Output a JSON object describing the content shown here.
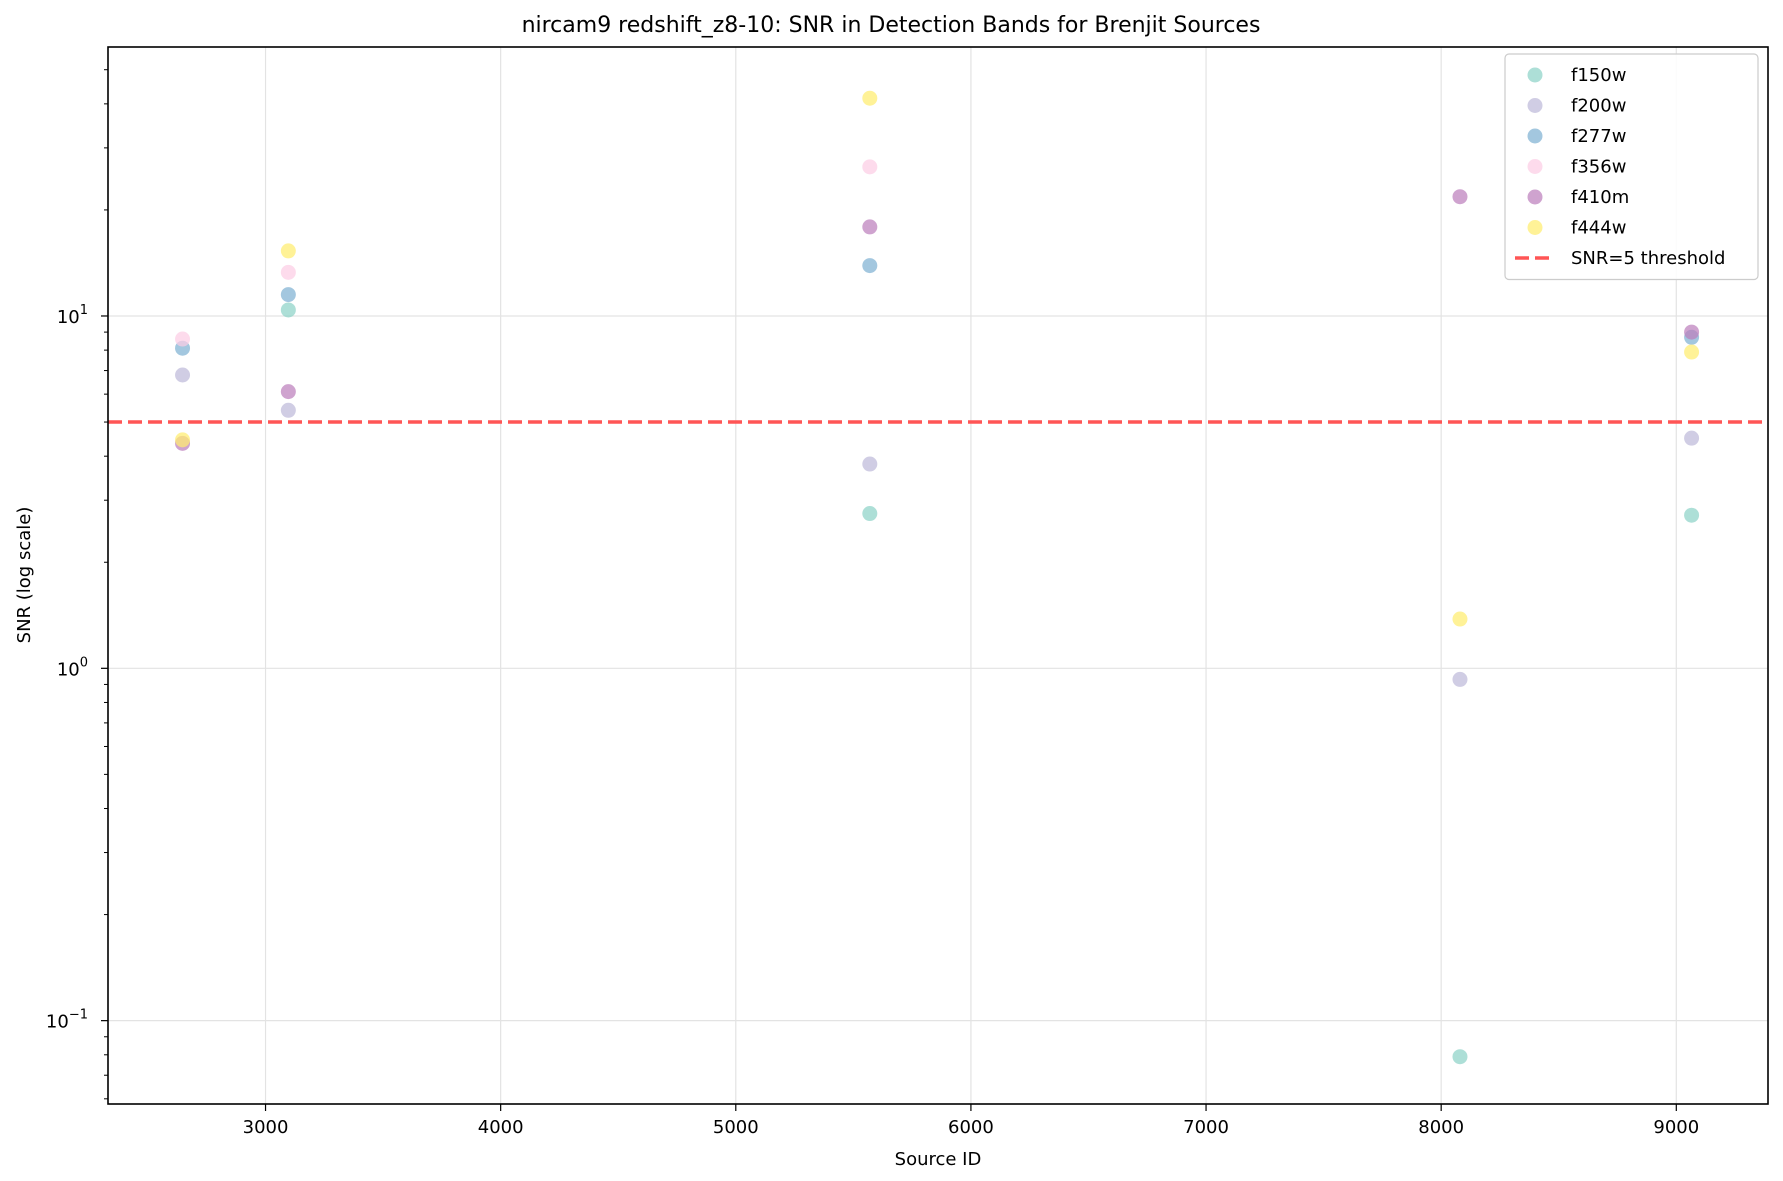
{
  "chart_data": {
    "type": "scatter",
    "title": "nircam9 redshift_z8-10: SNR in Detection Bands for Brenjit Sources",
    "xlabel": "Source ID",
    "ylabel": "SNR (log scale)",
    "xlim": [
      2330,
      9390
    ],
    "ylim": [
      0.058,
      58
    ],
    "yscale": "log",
    "grid": true,
    "legend_position": "top-right",
    "x_ticks": [
      3000,
      4000,
      5000,
      6000,
      7000,
      8000,
      9000
    ],
    "y_major_ticks": [
      {
        "value": 0.1,
        "base": "10",
        "exp": "−1"
      },
      {
        "value": 1,
        "base": "10",
        "exp": "0"
      },
      {
        "value": 10,
        "base": "10",
        "exp": "1"
      }
    ],
    "series": [
      {
        "name": "f150w",
        "color": "#8dd3c7",
        "points": [
          [
            3097,
            10.4
          ],
          [
            5570,
            2.75
          ],
          [
            8080,
            0.079
          ],
          [
            9065,
            2.72
          ]
        ]
      },
      {
        "name": "f200w",
        "color": "#bebada",
        "points": [
          [
            2647,
            6.8
          ],
          [
            3097,
            5.4
          ],
          [
            5570,
            3.8
          ],
          [
            8080,
            0.93
          ],
          [
            9065,
            4.5
          ]
        ]
      },
      {
        "name": "f277w",
        "color": "#80b1d3",
        "points": [
          [
            2647,
            8.1
          ],
          [
            3097,
            11.5
          ],
          [
            5570,
            13.9
          ],
          [
            9065,
            8.7
          ]
        ]
      },
      {
        "name": "f356w",
        "color": "#fccde5",
        "points": [
          [
            2647,
            8.6
          ],
          [
            3097,
            13.3
          ],
          [
            5570,
            26.5
          ]
        ]
      },
      {
        "name": "f410m",
        "color": "#bc80bd",
        "points": [
          [
            2647,
            4.35
          ],
          [
            3097,
            6.1
          ],
          [
            5570,
            17.9
          ],
          [
            8080,
            21.8
          ],
          [
            9065,
            9.0
          ]
        ]
      },
      {
        "name": "f444w",
        "color": "#ffed6f",
        "points": [
          [
            2647,
            4.45
          ],
          [
            3097,
            15.3
          ],
          [
            5570,
            41.5
          ],
          [
            8080,
            1.38
          ],
          [
            9065,
            7.9
          ]
        ]
      }
    ],
    "threshold": {
      "value": 5,
      "label": "SNR=5 threshold",
      "color": "#ff5555"
    }
  }
}
